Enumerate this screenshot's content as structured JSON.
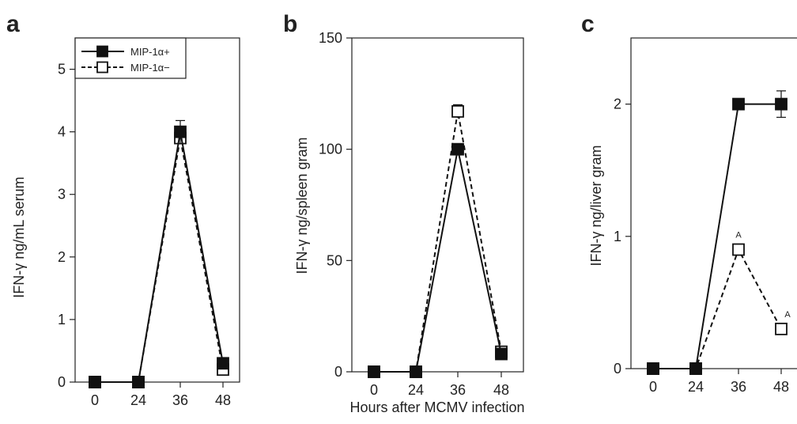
{
  "shared_xlabel": "Hours after MCMV infection",
  "chart_data": [
    {
      "panel": "a",
      "type": "line",
      "ylabel": "IFN-γ ng/mL serum",
      "x": [
        0,
        24,
        36,
        48
      ],
      "ylim": [
        0,
        5.5
      ],
      "yticks": [
        0,
        1,
        2,
        3,
        4,
        5
      ],
      "legend": "top-left",
      "series": [
        {
          "name": "MIP-1α+",
          "style": "solid",
          "marker": "filled-square",
          "values": [
            0,
            0,
            4.0,
            0.3
          ],
          "errors": [
            0,
            0,
            0.18,
            0
          ]
        },
        {
          "name": "MIP-1α−",
          "style": "dashed",
          "marker": "open-square",
          "values": [
            0,
            0,
            3.9,
            0.2
          ],
          "errors": [
            0,
            0,
            0,
            0
          ]
        }
      ]
    },
    {
      "panel": "b",
      "type": "line",
      "ylabel": "IFN-γ ng/spleen gram",
      "x": [
        0,
        24,
        36,
        48
      ],
      "ylim": [
        0,
        150
      ],
      "yticks": [
        0,
        50,
        100,
        150
      ],
      "series": [
        {
          "name": "MIP-1α+",
          "style": "solid",
          "marker": "filled-square",
          "values": [
            0,
            0,
            100,
            8
          ],
          "errors": [
            0,
            0,
            0,
            0
          ]
        },
        {
          "name": "MIP-1α−",
          "style": "dashed",
          "marker": "open-square",
          "values": [
            0,
            0,
            117,
            9
          ],
          "errors": [
            0,
            0,
            3,
            0
          ]
        }
      ]
    },
    {
      "panel": "c",
      "type": "line",
      "ylabel": "IFN-γ ng/liver gram",
      "x": [
        0,
        24,
        36,
        48
      ],
      "ylim": [
        0,
        2.5
      ],
      "yticks": [
        0,
        1,
        2
      ],
      "annotations": [
        {
          "series": "MIP-1α−",
          "x": 36,
          "text": "A"
        },
        {
          "series": "MIP-1α−",
          "x": 48,
          "text": "A"
        }
      ],
      "series": [
        {
          "name": "MIP-1α+",
          "style": "solid",
          "marker": "filled-square",
          "values": [
            0,
            0,
            2.0,
            2.0
          ],
          "errors": [
            0,
            0,
            0,
            0.1
          ]
        },
        {
          "name": "MIP-1α−",
          "style": "dashed",
          "marker": "open-square",
          "values": [
            0,
            0,
            0.9,
            0.3
          ],
          "errors": [
            0,
            0,
            0,
            0
          ]
        }
      ]
    }
  ]
}
